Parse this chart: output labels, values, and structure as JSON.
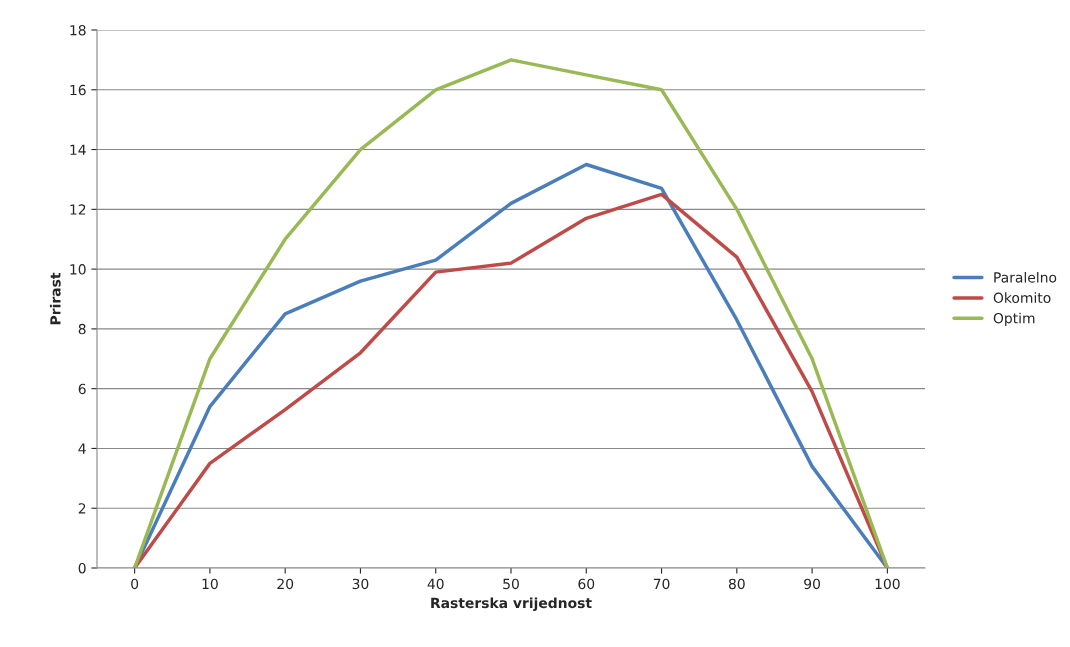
{
  "chart_data": {
    "type": "line",
    "xlabel": "Rasterska vrijednost",
    "ylabel": "Prirast",
    "categories": [
      "0",
      "10",
      "20",
      "30",
      "40",
      "50",
      "60",
      "70",
      "80",
      "90",
      "100"
    ],
    "series": [
      {
        "name": "Paralelno",
        "color": "#4a7ebb",
        "values": [
          0,
          5.4,
          8.5,
          9.6,
          10.3,
          12.2,
          13.5,
          12.7,
          8.3,
          3.4,
          0
        ]
      },
      {
        "name": "Okomito",
        "color": "#be4b48",
        "values": [
          0,
          3.5,
          5.3,
          7.2,
          9.9,
          10.2,
          11.7,
          12.5,
          10.4,
          5.9,
          0
        ]
      },
      {
        "name": "Optim",
        "color": "#98b954",
        "values": [
          0,
          7,
          11,
          14,
          16,
          17,
          16.5,
          16,
          12,
          7,
          0
        ]
      }
    ],
    "ylim": [
      0,
      18
    ],
    "yticks": [
      0,
      2,
      4,
      6,
      8,
      10,
      12,
      14,
      16,
      18
    ],
    "grid": "y",
    "legend": "right",
    "marker": "none",
    "line_style": "solid"
  }
}
